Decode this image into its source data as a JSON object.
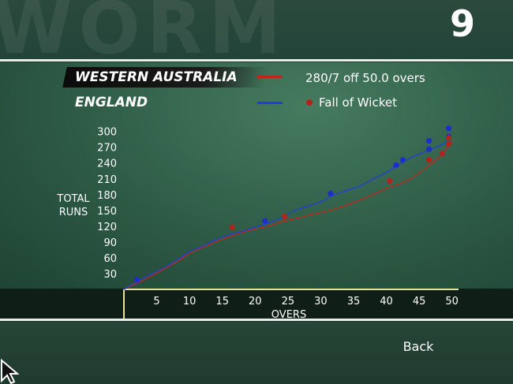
{
  "header": {
    "watermark": "WORM",
    "badge": "9"
  },
  "teams": {
    "team1": "WESTERN AUSTRALIA",
    "team2": "ENGLAND"
  },
  "legend": {
    "score_text": "280/7 off 50.0 overs",
    "fow_text": "Fall of Wicket",
    "color_team1": "#c0261c",
    "color_team2": "#1f3fd8",
    "fow_color_team1": "#b3231e",
    "fow_color_team2": "#1c2fc7"
  },
  "footer": {
    "back_label": "Back"
  },
  "chart_data": {
    "type": "line",
    "ylabel": "TOTAL\nRUNS",
    "xlabel": "OVERS",
    "xlim": [
      0,
      51
    ],
    "ylim": [
      0,
      310
    ],
    "x_ticks": [
      5,
      10,
      15,
      20,
      25,
      30,
      35,
      40,
      45,
      50
    ],
    "y_ticks": [
      30,
      60,
      90,
      120,
      150,
      180,
      210,
      240,
      270,
      300
    ],
    "series": [
      {
        "name": "WESTERN AUSTRALIA",
        "color": "#c0261c",
        "x": [
          0,
          2,
          4,
          6,
          8,
          10,
          12,
          14,
          16,
          18,
          20,
          22,
          24,
          26,
          28,
          30,
          32,
          34,
          36,
          38,
          40,
          42,
          44,
          46,
          48,
          50
        ],
        "y": [
          0,
          12,
          24,
          38,
          52,
          68,
          80,
          90,
          100,
          108,
          115,
          120,
          128,
          134,
          140,
          146,
          152,
          160,
          170,
          180,
          192,
          200,
          212,
          230,
          250,
          280
        ]
      },
      {
        "name": "ENGLAND",
        "color": "#1f3fd8",
        "x": [
          0,
          2,
          4,
          6,
          8,
          10,
          12,
          14,
          16,
          18,
          20,
          22,
          24,
          26,
          28,
          30,
          32,
          34,
          36,
          38,
          40,
          42,
          44,
          46,
          48,
          49.5
        ],
        "y": [
          0,
          15,
          28,
          40,
          55,
          72,
          82,
          94,
          104,
          110,
          118,
          126,
          136,
          150,
          158,
          166,
          180,
          188,
          196,
          210,
          222,
          238,
          252,
          262,
          272,
          282
        ]
      }
    ],
    "wickets": [
      {
        "team": "ENGLAND",
        "x": [
          2,
          21.5,
          31.5,
          41.5,
          42.5,
          46.5,
          46.5,
          49.5,
          49.5
        ],
        "y": [
          18,
          130,
          182,
          236,
          246,
          282,
          266,
          306,
          290
        ]
      },
      {
        "team": "WESTERN AUSTRALIA",
        "x": [
          16.5,
          24.5,
          40.5,
          46.5,
          48.5,
          49.5,
          49.5
        ],
        "y": [
          118,
          138,
          206,
          246,
          258,
          276,
          288
        ]
      }
    ]
  }
}
